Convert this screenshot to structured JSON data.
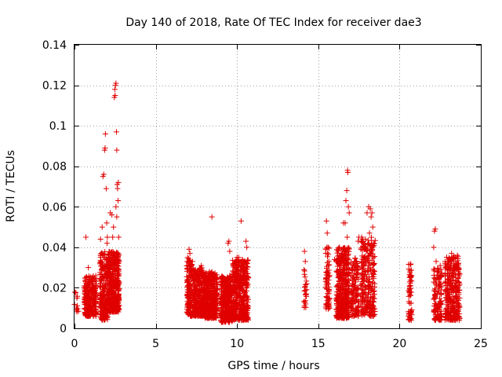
{
  "chart_data": {
    "type": "scatter",
    "title": "Day 140 of 2018, Rate Of TEC Index for receiver dae3",
    "xlabel": "GPS time / hours",
    "ylabel": "ROTI / TECUs",
    "xlim": [
      0,
      25
    ],
    "ylim": [
      0,
      0.14
    ],
    "xticks": [
      "0",
      "5",
      "10",
      "15",
      "20",
      "25"
    ],
    "yticks": [
      "0",
      "0.02",
      "0.04",
      "0.06",
      "0.08",
      "0.1",
      "0.12",
      "0.14"
    ],
    "grid": true,
    "marker": "plus",
    "marker_color": "#e00000",
    "series": [
      {
        "name": "ROTI",
        "segments": [
          {
            "x": [
              0.0,
              0.25
            ],
            "y": [
              0.008,
              0.02
            ],
            "n": 12
          },
          {
            "x": [
              0.6,
              1.35
            ],
            "y": [
              0.006,
              0.026
            ],
            "n": 260
          },
          {
            "x": [
              1.55,
              2.05
            ],
            "y": [
              0.004,
              0.038
            ],
            "n": 200
          },
          {
            "x": [
              2.05,
              2.75
            ],
            "y": [
              0.008,
              0.038
            ],
            "n": 420
          },
          {
            "x": [
              6.9,
              7.3
            ],
            "y": [
              0.006,
              0.035
            ],
            "n": 150
          },
          {
            "x": [
              7.3,
              8.0
            ],
            "y": [
              0.006,
              0.03
            ],
            "n": 330
          },
          {
            "x": [
              8.0,
              8.8
            ],
            "y": [
              0.005,
              0.028
            ],
            "n": 380
          },
          {
            "x": [
              9.0,
              9.7
            ],
            "y": [
              0.003,
              0.026
            ],
            "n": 380
          },
          {
            "x": [
              9.7,
              10.7
            ],
            "y": [
              0.004,
              0.034
            ],
            "n": 430
          },
          {
            "x": [
              14.1,
              14.3
            ],
            "y": [
              0.01,
              0.03
            ],
            "n": 22
          },
          {
            "x": [
              15.45,
              15.7
            ],
            "y": [
              0.009,
              0.04
            ],
            "n": 70
          },
          {
            "x": [
              16.1,
              16.9
            ],
            "y": [
              0.005,
              0.04
            ],
            "n": 440
          },
          {
            "x": [
              17.0,
              17.5
            ],
            "y": [
              0.006,
              0.035
            ],
            "n": 130
          },
          {
            "x": [
              17.6,
              18.5
            ],
            "y": [
              0.006,
              0.045
            ],
            "n": 260
          },
          {
            "x": [
              20.55,
              20.75
            ],
            "y": [
              0.004,
              0.032
            ],
            "n": 60
          },
          {
            "x": [
              22.1,
              22.6
            ],
            "y": [
              0.004,
              0.03
            ],
            "n": 130
          },
          {
            "x": [
              22.8,
              23.7
            ],
            "y": [
              0.004,
              0.036
            ],
            "n": 330
          }
        ],
        "points": [
          {
            "x": 0.7,
            "y": 0.045
          },
          {
            "x": 0.85,
            "y": 0.03
          },
          {
            "x": 1.6,
            "y": 0.044
          },
          {
            "x": 1.7,
            "y": 0.05
          },
          {
            "x": 1.75,
            "y": 0.075
          },
          {
            "x": 1.8,
            "y": 0.076
          },
          {
            "x": 1.85,
            "y": 0.088
          },
          {
            "x": 1.88,
            "y": 0.089
          },
          {
            "x": 1.9,
            "y": 0.096
          },
          {
            "x": 1.95,
            "y": 0.069
          },
          {
            "x": 1.98,
            "y": 0.052
          },
          {
            "x": 2.02,
            "y": 0.045
          },
          {
            "x": 2.0,
            "y": 0.042
          },
          {
            "x": 2.2,
            "y": 0.057
          },
          {
            "x": 2.3,
            "y": 0.056
          },
          {
            "x": 2.35,
            "y": 0.045
          },
          {
            "x": 2.4,
            "y": 0.05
          },
          {
            "x": 2.45,
            "y": 0.114
          },
          {
            "x": 2.48,
            "y": 0.118
          },
          {
            "x": 2.5,
            "y": 0.115
          },
          {
            "x": 2.52,
            "y": 0.12
          },
          {
            "x": 2.55,
            "y": 0.121
          },
          {
            "x": 2.58,
            "y": 0.097
          },
          {
            "x": 2.6,
            "y": 0.088
          },
          {
            "x": 2.62,
            "y": 0.071
          },
          {
            "x": 2.65,
            "y": 0.069
          },
          {
            "x": 2.68,
            "y": 0.063
          },
          {
            "x": 2.7,
            "y": 0.072
          },
          {
            "x": 2.55,
            "y": 0.06
          },
          {
            "x": 2.6,
            "y": 0.055
          },
          {
            "x": 2.72,
            "y": 0.045
          },
          {
            "x": 7.05,
            "y": 0.039
          },
          {
            "x": 7.1,
            "y": 0.037
          },
          {
            "x": 8.45,
            "y": 0.055
          },
          {
            "x": 7.8,
            "y": 0.031
          },
          {
            "x": 9.45,
            "y": 0.042
          },
          {
            "x": 9.5,
            "y": 0.043
          },
          {
            "x": 9.55,
            "y": 0.038
          },
          {
            "x": 10.0,
            "y": 0.035
          },
          {
            "x": 10.1,
            "y": 0.035
          },
          {
            "x": 10.25,
            "y": 0.053
          },
          {
            "x": 10.55,
            "y": 0.043
          },
          {
            "x": 10.6,
            "y": 0.04
          },
          {
            "x": 14.15,
            "y": 0.038
          },
          {
            "x": 14.2,
            "y": 0.033
          },
          {
            "x": 14.15,
            "y": 0.011
          },
          {
            "x": 14.22,
            "y": 0.012
          },
          {
            "x": 15.5,
            "y": 0.053
          },
          {
            "x": 15.55,
            "y": 0.047
          },
          {
            "x": 15.6,
            "y": 0.04
          },
          {
            "x": 16.0,
            "y": 0.034
          },
          {
            "x": 16.1,
            "y": 0.033
          },
          {
            "x": 16.3,
            "y": 0.04
          },
          {
            "x": 16.55,
            "y": 0.052
          },
          {
            "x": 16.65,
            "y": 0.052
          },
          {
            "x": 16.7,
            "y": 0.063
          },
          {
            "x": 16.75,
            "y": 0.068
          },
          {
            "x": 16.8,
            "y": 0.078
          },
          {
            "x": 16.82,
            "y": 0.077
          },
          {
            "x": 16.85,
            "y": 0.06
          },
          {
            "x": 16.9,
            "y": 0.057
          },
          {
            "x": 16.78,
            "y": 0.045
          },
          {
            "x": 17.5,
            "y": 0.045
          },
          {
            "x": 17.45,
            "y": 0.043
          },
          {
            "x": 18.0,
            "y": 0.057
          },
          {
            "x": 18.1,
            "y": 0.06
          },
          {
            "x": 18.2,
            "y": 0.059
          },
          {
            "x": 18.25,
            "y": 0.055
          },
          {
            "x": 18.3,
            "y": 0.057
          },
          {
            "x": 18.35,
            "y": 0.05
          },
          {
            "x": 18.15,
            "y": 0.047
          },
          {
            "x": 17.9,
            "y": 0.044
          },
          {
            "x": 22.1,
            "y": 0.04
          },
          {
            "x": 22.15,
            "y": 0.048
          },
          {
            "x": 22.2,
            "y": 0.049
          },
          {
            "x": 22.25,
            "y": 0.033
          },
          {
            "x": 22.5,
            "y": 0.031
          },
          {
            "x": 23.2,
            "y": 0.037
          },
          {
            "x": 23.3,
            "y": 0.035
          }
        ]
      }
    ]
  }
}
